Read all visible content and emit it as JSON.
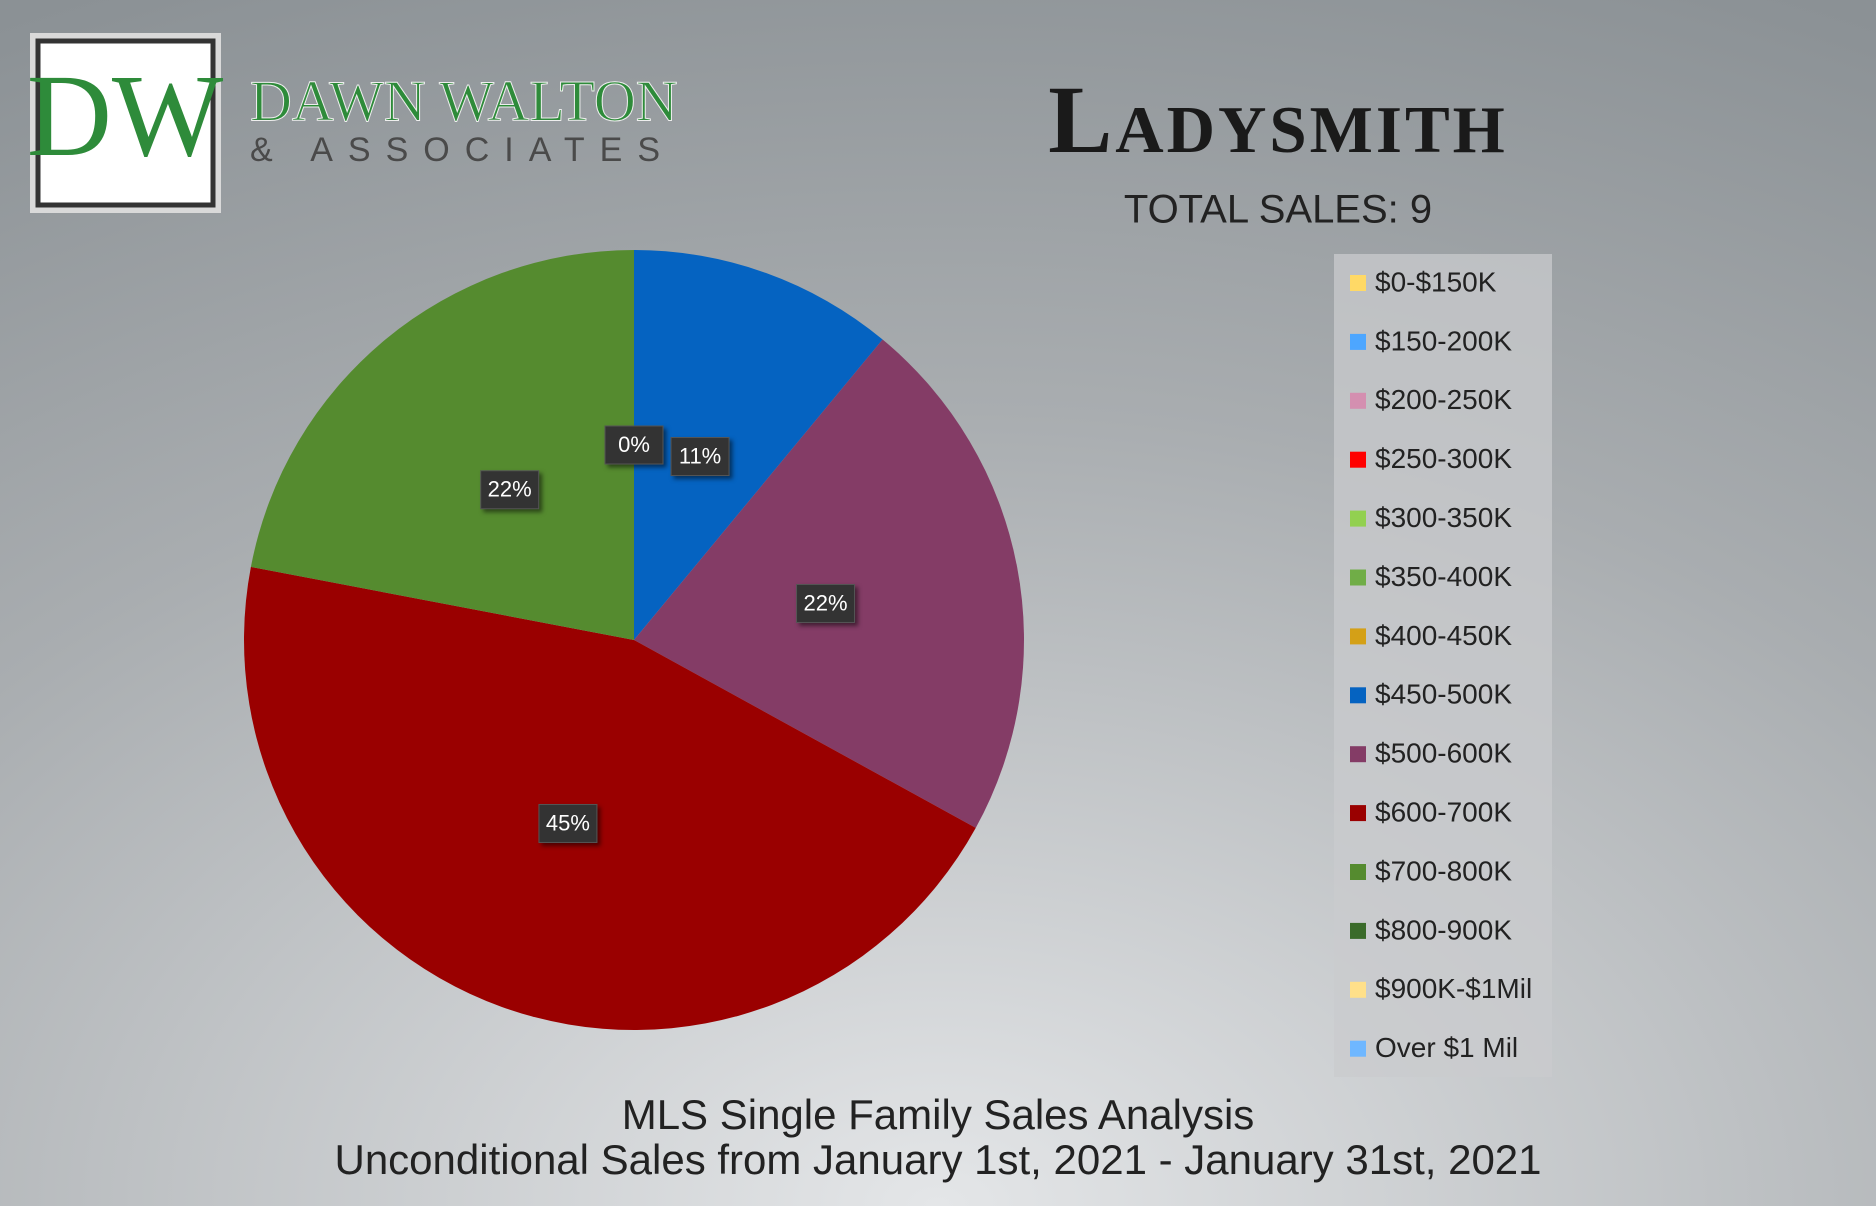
{
  "logo": {
    "initials": "DW",
    "name": "DAWN WALTON",
    "tagline": "& ASSOCIATES"
  },
  "chart_data": {
    "type": "pie",
    "title": "Ladysmith",
    "subtitle": "TOTAL SALES: 9",
    "footer": [
      "MLS Single Family Sales Analysis",
      "Unconditional Sales from January 1st, 2021 - January 31st, 2021"
    ],
    "categories": [
      "$0-$150K",
      "$150-200K",
      "$200-250K",
      "$250-300K",
      "$300-350K",
      "$350-400K",
      "$400-450K",
      "$450-500K",
      "$500-600K",
      "$600-700K",
      "$700-800K",
      "$800-900K",
      "$900K-$1Mil",
      "Over $1 Mil"
    ],
    "values": [
      0,
      0,
      0,
      0,
      0,
      0,
      0,
      11,
      22,
      45,
      22,
      0,
      0,
      0
    ],
    "value_labels": [
      null,
      null,
      null,
      null,
      null,
      null,
      null,
      "11%",
      "22%",
      "45%",
      "22%",
      "0%",
      null,
      null
    ],
    "colors": [
      "#ffd966",
      "#4da6ff",
      "#d48fb0",
      "#ff0000",
      "#92d050",
      "#70ad47",
      "#d4a017",
      "#0563c1",
      "#843c66",
      "#9a0000",
      "#558b2f",
      "#3a6b2a",
      "#ffe08a",
      "#6fb7ff"
    ],
    "legend": "right"
  }
}
